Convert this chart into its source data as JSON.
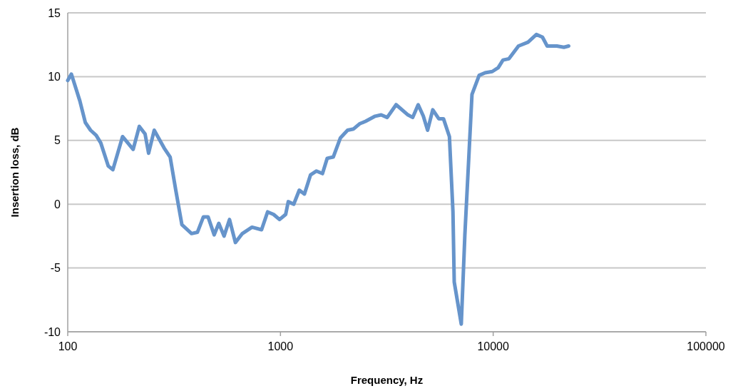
{
  "chart_data": {
    "type": "line",
    "xlabel": "Frequency, Hz",
    "ylabel": "Insertion loss, dB",
    "log": "x",
    "grid": "y",
    "marker": "none",
    "line_style": "solid",
    "xlim": [
      100,
      100000
    ],
    "xticks": [
      100,
      1000,
      10000,
      100000
    ],
    "ylim": [
      -10,
      15
    ],
    "yticks": [
      -10,
      -5,
      0,
      5,
      10,
      15
    ],
    "series": [
      {
        "color": "#6694cb",
        "x": [
          100,
          104,
          114,
          121,
          128,
          136,
          143,
          155,
          163,
          181,
          203,
          217,
          231,
          240,
          255,
          284,
          303,
          322,
          344,
          382,
          407,
          434,
          457,
          488,
          513,
          543,
          576,
          614,
          662,
          735,
          815,
          870,
          928,
          990,
          1058,
          1088,
          1155,
          1226,
          1296,
          1385,
          1477,
          1576,
          1659,
          1771,
          1914,
          2068,
          2207,
          2354,
          2513,
          2788,
          2975,
          3175,
          3497,
          3976,
          4185,
          4440,
          4695,
          4917,
          5200,
          5548,
          5839,
          6227,
          6470,
          6560,
          7080,
          7360,
          7650,
          7950,
          8590,
          9160,
          9900,
          10560,
          11120,
          11860,
          13150,
          14580,
          15960,
          17040,
          17940,
          19920,
          21500,
          22640
        ],
        "values": [
          9.7,
          10.2,
          8.1,
          6.4,
          5.8,
          5.4,
          4.8,
          3.0,
          2.7,
          5.3,
          4.3,
          6.1,
          5.5,
          4.0,
          5.8,
          4.4,
          3.7,
          1.1,
          -1.6,
          -2.3,
          -2.2,
          -1.0,
          -1.0,
          -2.4,
          -1.5,
          -2.5,
          -1.2,
          -3.0,
          -2.3,
          -1.8,
          -2.0,
          -0.6,
          -0.8,
          -1.2,
          -0.8,
          0.2,
          0.0,
          1.1,
          0.8,
          2.3,
          2.6,
          2.4,
          3.6,
          3.7,
          5.2,
          5.8,
          5.9,
          6.3,
          6.5,
          6.9,
          7.0,
          6.8,
          7.8,
          7.0,
          6.8,
          7.8,
          6.9,
          5.8,
          7.4,
          6.7,
          6.7,
          5.3,
          -0.6,
          -6.1,
          -9.4,
          -2.4,
          3.1,
          8.6,
          10.1,
          10.3,
          10.4,
          10.7,
          11.3,
          11.4,
          12.4,
          12.7,
          13.3,
          13.1,
          12.4,
          12.4,
          12.3,
          12.4
        ]
      }
    ]
  }
}
